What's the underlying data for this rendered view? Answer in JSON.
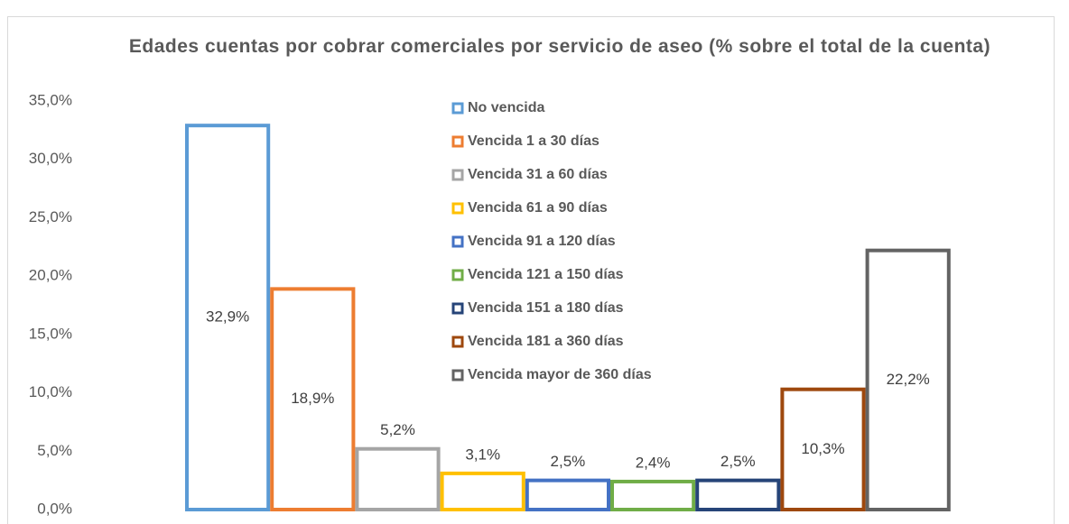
{
  "chart_data": {
    "type": "bar",
    "title": "Edades cuentas por cobrar comerciales por servicio de aseo (% sobre el total de la cuenta)",
    "ylim": [
      0,
      35
    ],
    "yticks": [
      {
        "value": 0,
        "label": "0,0%"
      },
      {
        "value": 5,
        "label": "5,0%"
      },
      {
        "value": 10,
        "label": "10,0%"
      },
      {
        "value": 15,
        "label": "15,0%"
      },
      {
        "value": 20,
        "label": "20,0%"
      },
      {
        "value": 25,
        "label": "25,0%"
      },
      {
        "value": 30,
        "label": "30,0%"
      },
      {
        "value": 35,
        "label": "35,0%"
      }
    ],
    "grid": false,
    "legend": "top",
    "series": [
      {
        "name": "No vencida",
        "color": "#5b9bd5",
        "values": [
          32.9
        ],
        "value_labels": [
          "32,9%"
        ]
      },
      {
        "name": "Vencida 1 a 30 días",
        "color": "#ed7d31",
        "values": [
          18.9
        ],
        "value_labels": [
          "18,9%"
        ]
      },
      {
        "name": "Vencida 31 a 60 días",
        "color": "#a5a5a5",
        "values": [
          5.2
        ],
        "value_labels": [
          "5,2%"
        ]
      },
      {
        "name": "Vencida 61 a 90 días",
        "color": "#ffc000",
        "values": [
          3.1
        ],
        "value_labels": [
          "3,1%"
        ]
      },
      {
        "name": "Vencida 91 a 120 días",
        "color": "#4472c4",
        "values": [
          2.5
        ],
        "value_labels": [
          "2,5%"
        ]
      },
      {
        "name": "Vencida 121 a 150 días",
        "color": "#70ad47",
        "values": [
          2.4
        ],
        "value_labels": [
          "2,4%"
        ]
      },
      {
        "name": "Vencida 151 a 180 días",
        "color": "#264478",
        "values": [
          2.5
        ],
        "value_labels": [
          "2,5%"
        ]
      },
      {
        "name": "Vencida 181 a 360 días",
        "color": "#9e480e",
        "values": [
          10.3
        ],
        "value_labels": [
          "10,3%"
        ]
      },
      {
        "name": "Vencida mayor de 360 días",
        "color": "#636363",
        "values": [
          22.2
        ],
        "value_labels": [
          "22,2%"
        ]
      }
    ]
  }
}
